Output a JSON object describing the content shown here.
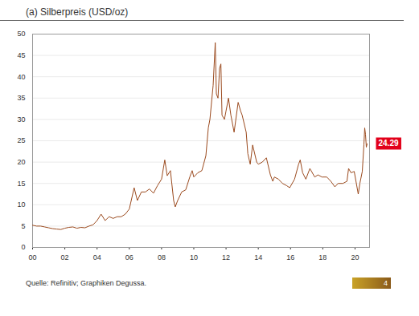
{
  "chart_data": {
    "type": "line",
    "title": "(a) Silberpreis (USD/oz)",
    "source": "Quelle: Refinitiv; Graphiken Degussa.",
    "x": [
      2000.0,
      2000.25,
      2000.5,
      2000.75,
      2001.0,
      2001.25,
      2001.5,
      2001.75,
      2002.0,
      2002.25,
      2002.5,
      2002.75,
      2003.0,
      2003.25,
      2003.5,
      2003.75,
      2004.0,
      2004.25,
      2004.5,
      2004.75,
      2005.0,
      2005.25,
      2005.5,
      2005.75,
      2006.0,
      2006.3,
      2006.5,
      2006.75,
      2007.0,
      2007.25,
      2007.5,
      2007.75,
      2008.0,
      2008.2,
      2008.35,
      2008.55,
      2008.75,
      2008.85,
      2009.0,
      2009.25,
      2009.5,
      2009.75,
      2009.9,
      2010.0,
      2010.25,
      2010.5,
      2010.75,
      2010.9,
      2011.0,
      2011.2,
      2011.33,
      2011.4,
      2011.5,
      2011.6,
      2011.68,
      2011.75,
      2011.9,
      2012.0,
      2012.15,
      2012.3,
      2012.5,
      2012.75,
      2012.9,
      2013.0,
      2013.25,
      2013.35,
      2013.5,
      2013.65,
      2013.9,
      2014.0,
      2014.25,
      2014.5,
      2014.75,
      2014.9,
      2015.0,
      2015.25,
      2015.5,
      2015.75,
      2015.95,
      2016.25,
      2016.5,
      2016.6,
      2016.75,
      2016.95,
      2017.2,
      2017.5,
      2017.7,
      2017.95,
      2018.25,
      2018.5,
      2018.75,
      2018.95,
      2019.25,
      2019.5,
      2019.6,
      2019.75,
      2019.95,
      2020.2,
      2020.3,
      2020.45,
      2020.55,
      2020.6,
      2020.65,
      2020.7,
      2020.75
    ],
    "series": [
      {
        "name": "Silberpreis",
        "color": "#9b4a1e",
        "values": [
          5.2,
          5.0,
          5.0,
          4.8,
          4.6,
          4.4,
          4.3,
          4.2,
          4.5,
          4.7,
          4.8,
          4.5,
          4.7,
          4.6,
          5.0,
          5.3,
          6.3,
          7.8,
          6.3,
          7.2,
          6.8,
          7.2,
          7.2,
          7.8,
          9.0,
          14.0,
          11.0,
          13.0,
          13.0,
          13.7,
          12.7,
          14.5,
          16.0,
          20.5,
          16.8,
          18.0,
          11.0,
          9.5,
          11.0,
          13.0,
          13.5,
          16.5,
          18.0,
          16.5,
          17.5,
          18.0,
          21.5,
          28.0,
          30.0,
          38.0,
          48.0,
          36.0,
          35.0,
          42.0,
          43.0,
          31.0,
          30.0,
          32.0,
          35.0,
          31.0,
          27.0,
          34.0,
          32.0,
          31.0,
          27.0,
          22.0,
          19.5,
          24.0,
          20.0,
          19.5,
          20.0,
          21.0,
          17.0,
          15.5,
          16.5,
          16.0,
          15.0,
          14.5,
          14.0,
          16.0,
          19.5,
          20.5,
          17.5,
          16.0,
          18.5,
          16.5,
          17.0,
          16.5,
          16.5,
          15.5,
          14.2,
          15.0,
          15.0,
          15.5,
          18.5,
          17.5,
          17.8,
          12.5,
          15.0,
          17.8,
          24.0,
          28.0,
          26.5,
          23.5,
          24.29
        ]
      }
    ],
    "xlim": [
      2000,
      2020.9
    ],
    "xticks": [
      {
        "value": 2000,
        "label": "00"
      },
      {
        "value": 2002,
        "label": "02"
      },
      {
        "value": 2004,
        "label": "04"
      },
      {
        "value": 2006,
        "label": "06"
      },
      {
        "value": 2008,
        "label": "08"
      },
      {
        "value": 2010,
        "label": "10"
      },
      {
        "value": 2012,
        "label": "12"
      },
      {
        "value": 2014,
        "label": "14"
      },
      {
        "value": 2016,
        "label": "16"
      },
      {
        "value": 2018,
        "label": "18"
      },
      {
        "value": 2020,
        "label": "20"
      }
    ],
    "ylim": [
      0,
      50
    ],
    "yticks": [
      0,
      5,
      10,
      15,
      20,
      25,
      30,
      35,
      40,
      45,
      50
    ],
    "grid": true,
    "annotations": [
      {
        "text": "24.29",
        "x": 2020.75,
        "y": 24.29,
        "color": "#e2001a"
      }
    ]
  },
  "page": "4"
}
